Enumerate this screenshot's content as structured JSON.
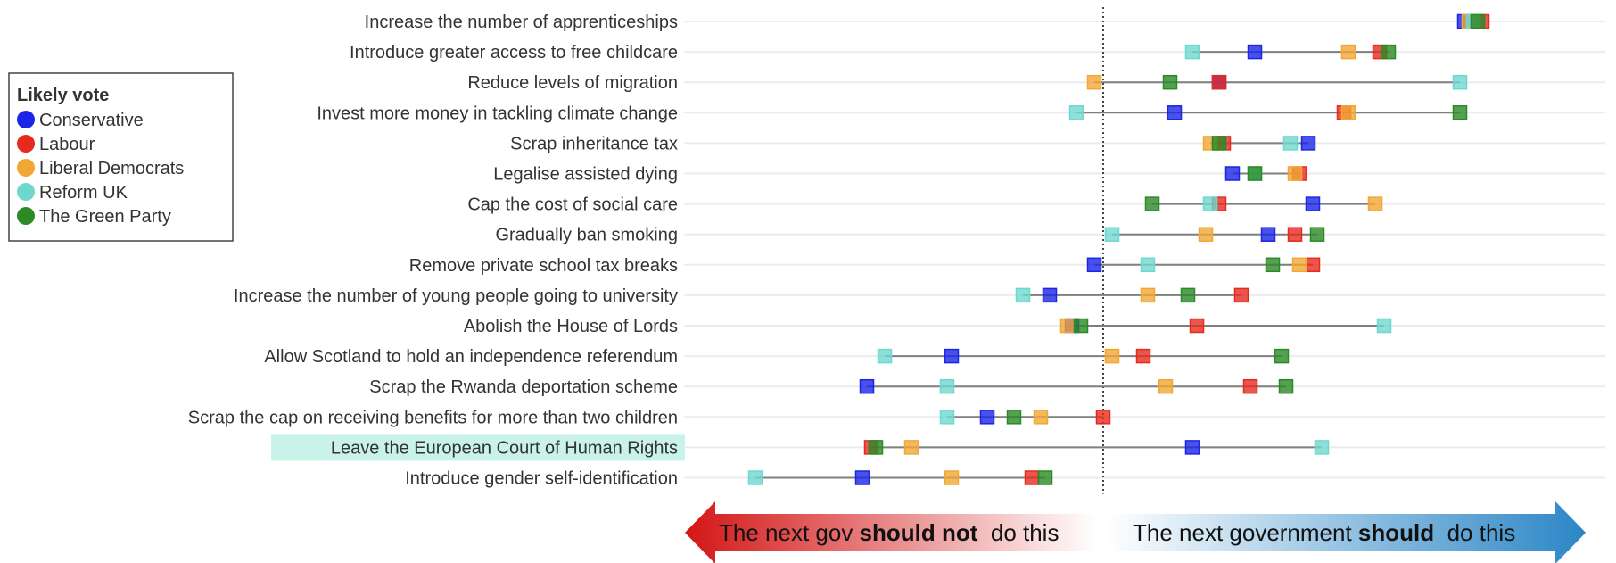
{
  "chart_data": {
    "type": "dot-range",
    "legend": {
      "title": "Likely vote"
    },
    "series": [
      {
        "name": "Conservative",
        "color": "#1a25e6"
      },
      {
        "name": "Labour",
        "color": "#e62b1e"
      },
      {
        "name": "Liberal Democrats",
        "color": "#f2a735"
      },
      {
        "name": "Reform UK",
        "color": "#6ed8cf"
      },
      {
        "name": "The Green Party",
        "color": "#2b8a25"
      }
    ],
    "xlim": [
      -1,
      1
    ],
    "reference_line": 0,
    "highlighted_row": "Leave the European Court of Human Rights",
    "highlight_color": "#c8f2ea",
    "rows": [
      {
        "label": "Increase the number of apprenticeships",
        "values": [
          0.81,
          0.85,
          0.82,
          0.83,
          0.84
        ]
      },
      {
        "label": "Introduce greater access to free childcare",
        "values": [
          0.34,
          0.62,
          0.55,
          0.2,
          0.64
        ]
      },
      {
        "label": "Reduce levels of migration",
        "values": [
          0.26,
          0.26,
          -0.02,
          0.8,
          0.15
        ]
      },
      {
        "label": "Invest more money in tackling climate change",
        "values": [
          0.16,
          0.54,
          0.55,
          -0.06,
          0.8
        ]
      },
      {
        "label": "Scrap inheritance tax",
        "values": [
          0.46,
          0.27,
          0.24,
          0.42,
          0.26
        ]
      },
      {
        "label": "Legalise assisted dying",
        "values": [
          0.29,
          0.44,
          0.43,
          0.34,
          0.34
        ]
      },
      {
        "label": "Cap the cost of social care",
        "values": [
          0.47,
          0.26,
          0.61,
          0.24,
          0.11
        ]
      },
      {
        "label": "Gradually ban smoking",
        "values": [
          0.37,
          0.43,
          0.23,
          0.02,
          0.48
        ]
      },
      {
        "label": "Remove private school tax breaks",
        "values": [
          -0.02,
          0.47,
          0.44,
          0.1,
          0.38
        ]
      },
      {
        "label": "Increase the number of young people going to university",
        "values": [
          -0.12,
          0.31,
          0.1,
          -0.18,
          0.19
        ]
      },
      {
        "label": "Abolish the House of Lords",
        "values": [
          -0.07,
          0.21,
          -0.08,
          0.63,
          -0.05
        ]
      },
      {
        "label": "Allow Scotland to hold an independence referendum",
        "values": [
          -0.34,
          0.09,
          0.02,
          -0.49,
          0.4
        ]
      },
      {
        "label": "Scrap the Rwanda deportation scheme",
        "values": [
          -0.53,
          0.33,
          0.14,
          -0.35,
          0.41
        ]
      },
      {
        "label": "Scrap the cap on receiving benefits for more than two children",
        "values": [
          -0.26,
          0,
          -0.14,
          -0.35,
          -0.2
        ]
      },
      {
        "label": "Leave the European Court of Human Rights",
        "values": [
          0.2,
          -0.52,
          -0.43,
          0.49,
          -0.51
        ]
      },
      {
        "label": "Introduce gender self-identification",
        "values": [
          -0.54,
          -0.16,
          -0.34,
          -0.78,
          -0.13
        ]
      }
    ],
    "arrows": {
      "left": {
        "prefix": "The next gov ",
        "bold": "should not",
        "suffix": "  do this"
      },
      "right": {
        "prefix": "The next government ",
        "bold": "should",
        "suffix": "  do this"
      }
    }
  }
}
